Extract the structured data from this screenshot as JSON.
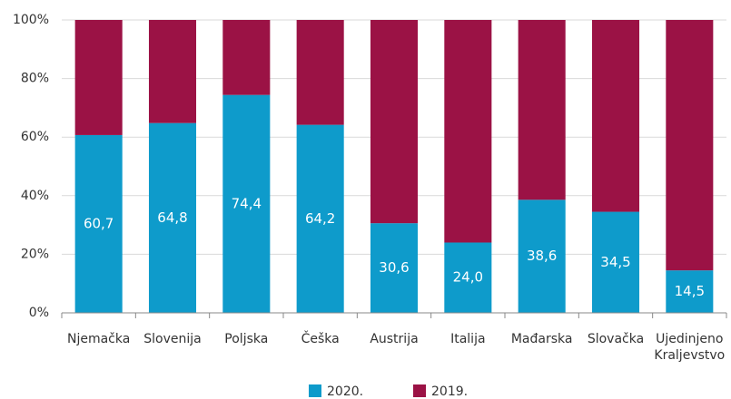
{
  "chart_data": {
    "type": "stacked_bar_100",
    "categories": [
      "Njemačka",
      "Slovenija",
      "Poljska",
      "Češka",
      "Austrija",
      "Italija",
      "Mađarska",
      "Slovačka",
      "Ujedinjeno Kraljevstvo"
    ],
    "series": [
      {
        "name": "2020.",
        "color": "#0e9bcb",
        "values": [
          60.7,
          64.8,
          74.4,
          64.2,
          30.6,
          24.0,
          38.6,
          34.5,
          14.5
        ],
        "value_labels": [
          "60,7",
          "64,8",
          "74,4",
          "64,2",
          "30,6",
          "24,0",
          "38,6",
          "34,5",
          "14,5"
        ]
      },
      {
        "name": "2019.",
        "color": "#9b1245",
        "values": [
          39.3,
          35.2,
          25.6,
          35.8,
          69.4,
          76.0,
          61.4,
          65.5,
          85.5
        ]
      }
    ],
    "ylim": [
      0,
      100
    ],
    "yticks": [
      {
        "value": 0,
        "label": "0%"
      },
      {
        "value": 20,
        "label": "20%"
      },
      {
        "value": 40,
        "label": "40%"
      },
      {
        "value": 60,
        "label": "60%"
      },
      {
        "value": 80,
        "label": "80%"
      },
      {
        "value": 100,
        "label": "100%"
      }
    ],
    "grid": true,
    "legend": "bottom"
  }
}
